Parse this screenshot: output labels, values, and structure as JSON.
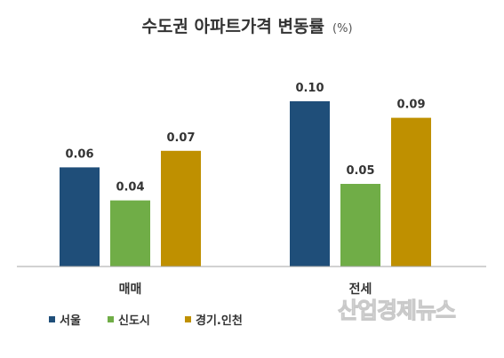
{
  "chart_data": {
    "type": "bar",
    "title": "수도권 아파트가격 변동률",
    "unit": "(%)",
    "categories": [
      "매매",
      "전세"
    ],
    "series": [
      {
        "name": "서울",
        "color": "#1F4E79",
        "values": [
          0.06,
          0.1
        ]
      },
      {
        "name": "신도시",
        "color": "#70AD47",
        "values": [
          0.04,
          0.05
        ]
      },
      {
        "name": "경기.인천",
        "color": "#BF9000",
        "values": [
          0.07,
          0.09
        ]
      }
    ],
    "value_labels": [
      [
        "0.06",
        "0.10"
      ],
      [
        "0.04",
        "0.05"
      ],
      [
        "0.07",
        "0.09"
      ]
    ],
    "ylim": [
      0,
      0.12
    ],
    "grid": false,
    "legend_position": "bottom-left"
  },
  "watermark": "산업경제뉴스"
}
